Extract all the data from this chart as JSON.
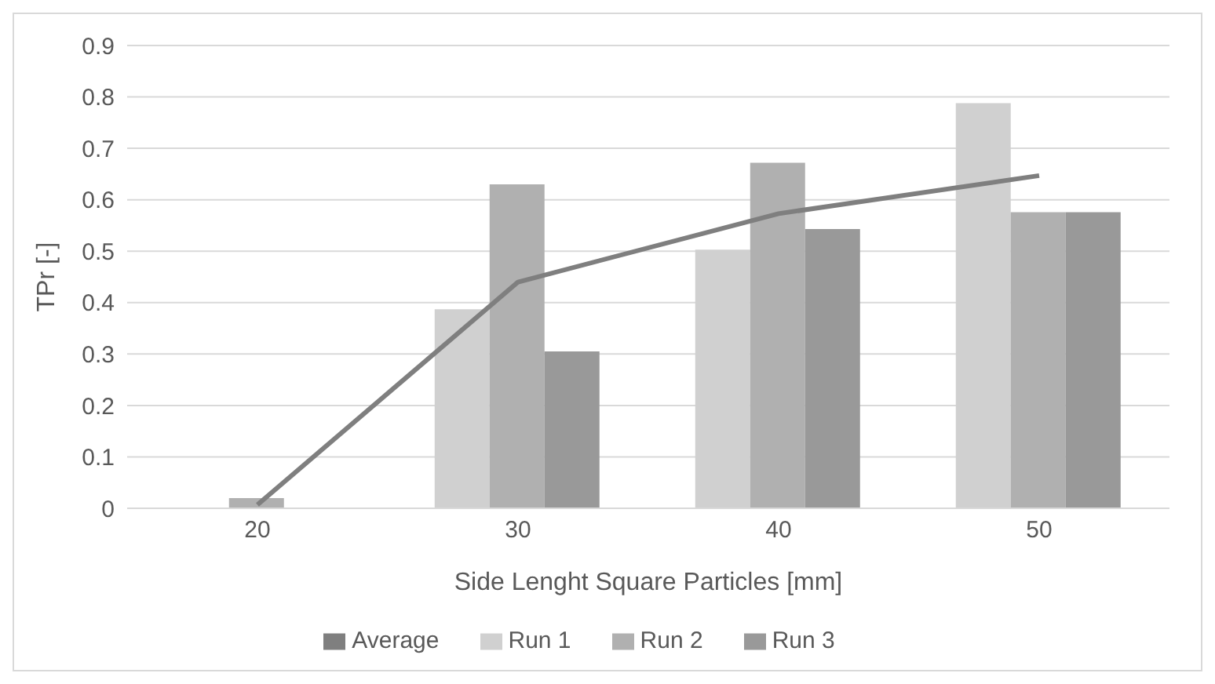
{
  "chart_data": {
    "type": "bar",
    "xlabel": "Side Lenght Square Particles [mm]",
    "ylabel": "TPr [-]",
    "categories": [
      "20",
      "30",
      "40",
      "50"
    ],
    "series": [
      {
        "name": "Run 1",
        "color": "#d0d0d0",
        "values": [
          0,
          0.387,
          0.503,
          0.788
        ]
      },
      {
        "name": "Run 2",
        "color": "#b0b0b0",
        "values": [
          0.02,
          0.63,
          0.672,
          0.576
        ]
      },
      {
        "name": "Run 3",
        "color": "#999999",
        "values": [
          0,
          0.305,
          0.543,
          0.576
        ]
      },
      {
        "name": "Average",
        "type": "line",
        "color": "#7f7f7f",
        "values": [
          0.007,
          0.44,
          0.573,
          0.647
        ]
      }
    ],
    "ylim": [
      0,
      0.9
    ],
    "yticks": [
      0,
      0.1,
      0.2,
      0.3,
      0.4,
      0.5,
      0.6,
      0.7,
      0.8,
      0.9
    ],
    "grid": "y",
    "legend": "bottom",
    "marker": "none"
  }
}
